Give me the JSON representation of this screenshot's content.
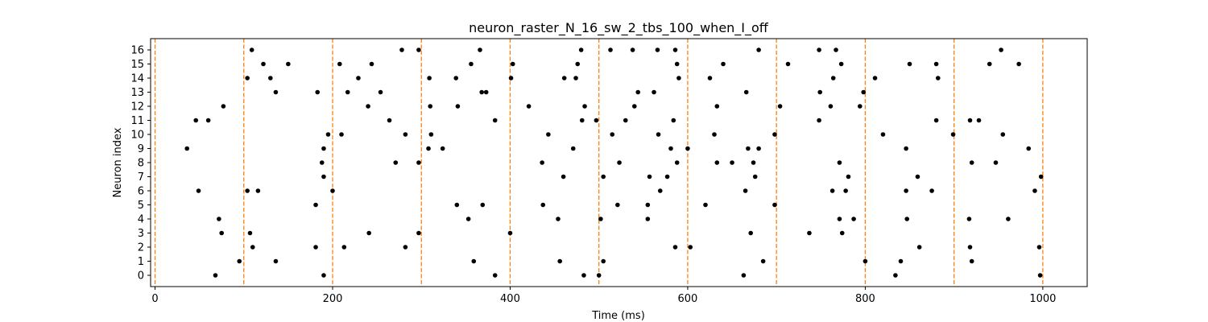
{
  "chart_data": {
    "type": "scatter",
    "title": "neuron_raster_N_16_sw_2_tbs_100_when_I_off",
    "xlabel": "Time (ms)",
    "ylabel": "Neuron index",
    "xlim": [
      -5,
      1050
    ],
    "ylim": [
      -0.8,
      16.8
    ],
    "xticks": [
      0,
      200,
      400,
      600,
      800,
      1000
    ],
    "yticks": [
      0,
      1,
      2,
      3,
      4,
      5,
      6,
      7,
      8,
      9,
      10,
      11,
      12,
      13,
      14,
      15,
      16
    ],
    "grid": false,
    "legend": "none",
    "marker_color": "#000000",
    "vline_color": "#ff7f0e",
    "vlines": [
      0,
      100,
      200,
      300,
      400,
      500,
      600,
      700,
      800,
      900,
      1000
    ],
    "series": [
      {
        "points": [
          [
            68,
            0
          ],
          [
            190,
            0
          ],
          [
            383,
            0
          ],
          [
            483,
            0
          ],
          [
            500,
            0
          ],
          [
            663,
            0
          ],
          [
            834,
            0
          ],
          [
            997,
            0
          ],
          [
            95,
            1
          ],
          [
            136,
            1
          ],
          [
            359,
            1
          ],
          [
            456,
            1
          ],
          [
            505,
            1
          ],
          [
            685,
            1
          ],
          [
            800,
            1
          ],
          [
            840,
            1
          ],
          [
            920,
            1
          ],
          [
            110,
            2
          ],
          [
            181,
            2
          ],
          [
            213,
            2
          ],
          [
            282,
            2
          ],
          [
            586,
            2
          ],
          [
            603,
            2
          ],
          [
            861,
            2
          ],
          [
            918,
            2
          ],
          [
            996,
            2
          ],
          [
            75,
            3
          ],
          [
            107,
            3
          ],
          [
            241,
            3
          ],
          [
            297,
            3
          ],
          [
            400,
            3
          ],
          [
            671,
            3
          ],
          [
            737,
            3
          ],
          [
            774,
            3
          ],
          [
            72,
            4
          ],
          [
            353,
            4
          ],
          [
            454,
            4
          ],
          [
            502,
            4
          ],
          [
            555,
            4
          ],
          [
            771,
            4
          ],
          [
            787,
            4
          ],
          [
            847,
            4
          ],
          [
            917,
            4
          ],
          [
            961,
            4
          ],
          [
            181,
            5
          ],
          [
            340,
            5
          ],
          [
            369,
            5
          ],
          [
            437,
            5
          ],
          [
            521,
            5
          ],
          [
            555,
            5
          ],
          [
            620,
            5
          ],
          [
            698,
            5
          ],
          [
            49,
            6
          ],
          [
            104,
            6
          ],
          [
            116,
            6
          ],
          [
            200,
            6
          ],
          [
            569,
            6
          ],
          [
            665,
            6
          ],
          [
            763,
            6
          ],
          [
            778,
            6
          ],
          [
            846,
            6
          ],
          [
            875,
            6
          ],
          [
            991,
            6
          ],
          [
            190,
            7
          ],
          [
            460,
            7
          ],
          [
            505,
            7
          ],
          [
            557,
            7
          ],
          [
            577,
            7
          ],
          [
            676,
            7
          ],
          [
            781,
            7
          ],
          [
            859,
            7
          ],
          [
            998,
            7
          ],
          [
            188,
            8
          ],
          [
            271,
            8
          ],
          [
            297,
            8
          ],
          [
            436,
            8
          ],
          [
            523,
            8
          ],
          [
            588,
            8
          ],
          [
            633,
            8
          ],
          [
            650,
            8
          ],
          [
            674,
            8
          ],
          [
            771,
            8
          ],
          [
            920,
            8
          ],
          [
            947,
            8
          ],
          [
            36,
            9
          ],
          [
            190,
            9
          ],
          [
            308,
            9
          ],
          [
            324,
            9
          ],
          [
            471,
            9
          ],
          [
            581,
            9
          ],
          [
            600,
            9
          ],
          [
            668,
            9
          ],
          [
            680,
            9
          ],
          [
            846,
            9
          ],
          [
            984,
            9
          ],
          [
            195,
            10
          ],
          [
            210,
            10
          ],
          [
            282,
            10
          ],
          [
            311,
            10
          ],
          [
            443,
            10
          ],
          [
            515,
            10
          ],
          [
            567,
            10
          ],
          [
            630,
            10
          ],
          [
            698,
            10
          ],
          [
            820,
            10
          ],
          [
            899,
            10
          ],
          [
            955,
            10
          ],
          [
            46,
            11
          ],
          [
            60,
            11
          ],
          [
            264,
            11
          ],
          [
            383,
            11
          ],
          [
            481,
            11
          ],
          [
            497,
            11
          ],
          [
            530,
            11
          ],
          [
            584,
            11
          ],
          [
            748,
            11
          ],
          [
            880,
            11
          ],
          [
            918,
            11
          ],
          [
            928,
            11
          ],
          [
            77,
            12
          ],
          [
            240,
            12
          ],
          [
            310,
            12
          ],
          [
            341,
            12
          ],
          [
            421,
            12
          ],
          [
            484,
            12
          ],
          [
            540,
            12
          ],
          [
            633,
            12
          ],
          [
            704,
            12
          ],
          [
            761,
            12
          ],
          [
            794,
            12
          ],
          [
            136,
            13
          ],
          [
            183,
            13
          ],
          [
            217,
            13
          ],
          [
            254,
            13
          ],
          [
            368,
            13
          ],
          [
            373,
            13
          ],
          [
            544,
            13
          ],
          [
            562,
            13
          ],
          [
            666,
            13
          ],
          [
            749,
            13
          ],
          [
            798,
            13
          ],
          [
            104,
            14
          ],
          [
            130,
            14
          ],
          [
            229,
            14
          ],
          [
            309,
            14
          ],
          [
            339,
            14
          ],
          [
            401,
            14
          ],
          [
            461,
            14
          ],
          [
            474,
            14
          ],
          [
            590,
            14
          ],
          [
            625,
            14
          ],
          [
            764,
            14
          ],
          [
            811,
            14
          ],
          [
            882,
            14
          ],
          [
            122,
            15
          ],
          [
            150,
            15
          ],
          [
            208,
            15
          ],
          [
            244,
            15
          ],
          [
            356,
            15
          ],
          [
            403,
            15
          ],
          [
            476,
            15
          ],
          [
            588,
            15
          ],
          [
            640,
            15
          ],
          [
            713,
            15
          ],
          [
            773,
            15
          ],
          [
            850,
            15
          ],
          [
            880,
            15
          ],
          [
            940,
            15
          ],
          [
            973,
            15
          ],
          [
            109,
            16
          ],
          [
            278,
            16
          ],
          [
            297,
            16
          ],
          [
            366,
            16
          ],
          [
            480,
            16
          ],
          [
            513,
            16
          ],
          [
            538,
            16
          ],
          [
            566,
            16
          ],
          [
            586,
            16
          ],
          [
            680,
            16
          ],
          [
            748,
            16
          ],
          [
            767,
            16
          ],
          [
            953,
            16
          ]
        ]
      }
    ]
  }
}
